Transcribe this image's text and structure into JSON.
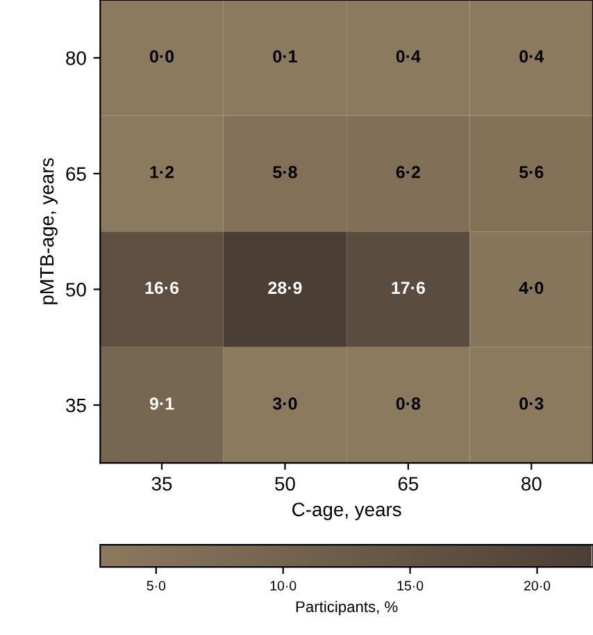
{
  "chart_data": {
    "type": "heatmap",
    "xlabel": "C-age, years",
    "ylabel": "pMTB-age, years",
    "clabel": "Participants, %",
    "categories": [
      "35",
      "50",
      "65",
      "80"
    ],
    "y_categories": [
      "80",
      "65",
      "50",
      "35"
    ],
    "cells": [
      [
        0.0,
        0.1,
        0.4,
        0.4
      ],
      [
        1.2,
        5.8,
        6.2,
        5.6
      ],
      [
        16.6,
        28.9,
        17.6,
        4.0
      ],
      [
        9.1,
        3.0,
        0.8,
        0.3
      ]
    ],
    "cell_labels": [
      [
        "0·0",
        "0·1",
        "0·4",
        "0·4"
      ],
      [
        "1·2",
        "5·8",
        "6·2",
        "5·6"
      ],
      [
        "16·6",
        "28·9",
        "17·6",
        "4·0"
      ],
      [
        "9·1",
        "3·0",
        "0·8",
        "0·3"
      ]
    ],
    "colors": [
      "#8c7a5e",
      "#4b3e35"
    ],
    "clim": [
      2.8,
      22.2
    ],
    "cticks": [
      {
        "value": 5,
        "label": "5·0"
      },
      {
        "value": 10,
        "label": "10·0"
      },
      {
        "value": 15,
        "label": "15·0"
      },
      {
        "value": 20,
        "label": "20·0"
      }
    ]
  }
}
